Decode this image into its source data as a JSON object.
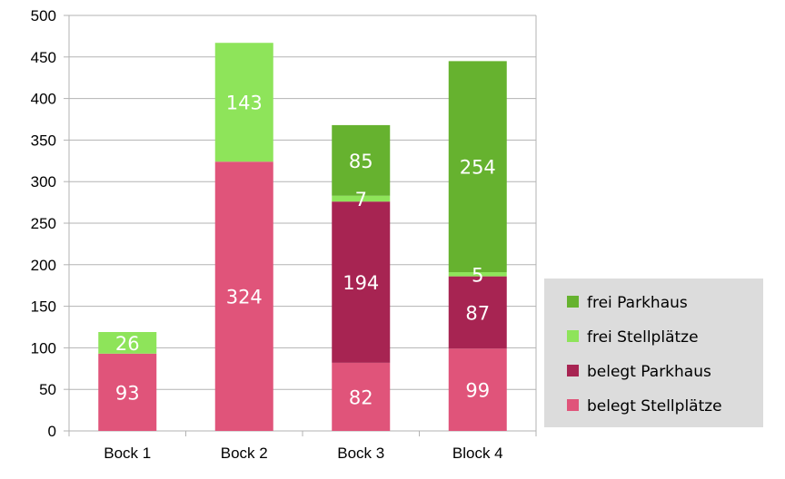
{
  "chart_data": {
    "type": "bar",
    "stacked": true,
    "categories": [
      "Bock 1",
      "Bock 2",
      "Bock 3",
      "Block 4"
    ],
    "series": [
      {
        "name": "belegt Stellplätze",
        "color": "#e0547a",
        "values": [
          93,
          324,
          82,
          99
        ]
      },
      {
        "name": "belegt Parkhaus",
        "color": "#a72452",
        "values": [
          null,
          null,
          194,
          87
        ]
      },
      {
        "name": "frei Stellplätze",
        "color": "#8ee45a",
        "values": [
          26,
          143,
          7,
          5
        ]
      },
      {
        "name": "frei Parkhaus",
        "color": "#66b22f",
        "values": [
          null,
          null,
          85,
          254
        ]
      }
    ],
    "title": "",
    "xlabel": "",
    "ylabel": "",
    "ylim": [
      0,
      500
    ],
    "yticks": [
      0,
      50,
      100,
      150,
      200,
      250,
      300,
      350,
      400,
      450,
      500
    ],
    "grid": "y-major",
    "legend_position": "right",
    "legend_order": [
      "frei Parkhaus",
      "frei Stellplätze",
      "belegt Parkhaus",
      "belegt Stellplätze"
    ]
  }
}
